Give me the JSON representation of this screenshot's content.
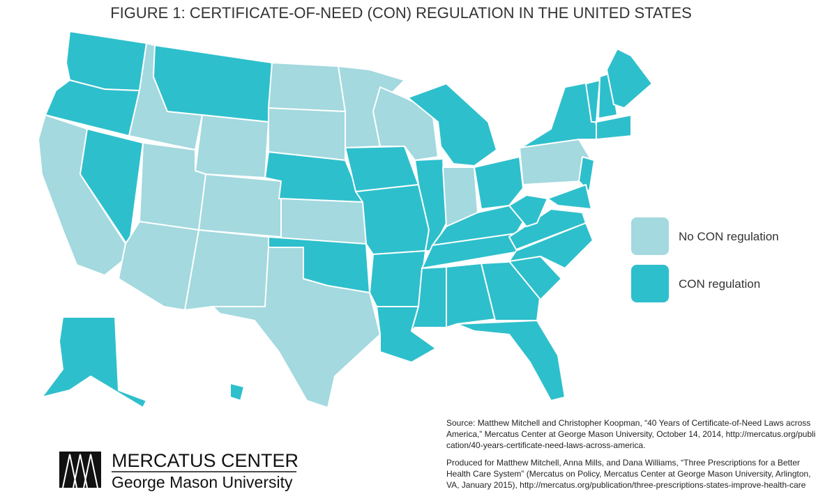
{
  "title": "FIGURE 1: CERTIFICATE-OF-NEED (CON) REGULATION IN THE UNITED STATES",
  "legend": [
    {
      "label": "No CON regulation",
      "color": "#a3d9df"
    },
    {
      "label": "CON regulation",
      "color": "#2ebfcc"
    }
  ],
  "source": [
    "Source: Matthew Mitchell and Christopher Koopman, “40 Years of Certificate-of-Need Laws across",
    "America,” Mercatus Center at George Mason University, October 14, 2014, http://mercatus.org/publi-",
    "cation/40-years-certificate-need-laws-across-america."
  ],
  "produced": [
    "Produced for Matthew Mitchell, Anna Mills, and Dana Williams, “Three Prescriptions for a Better",
    "Health Care System” (Mercatus on Policy, Mercatus Center at George Mason University, Arlington,",
    "VA, January 2015), http://mercatus.org/publication/three-prescriptions-states-improve-health-care"
  ],
  "logo": {
    "name": "MERCATUS CENTER",
    "subtitle": "George Mason University"
  }
}
